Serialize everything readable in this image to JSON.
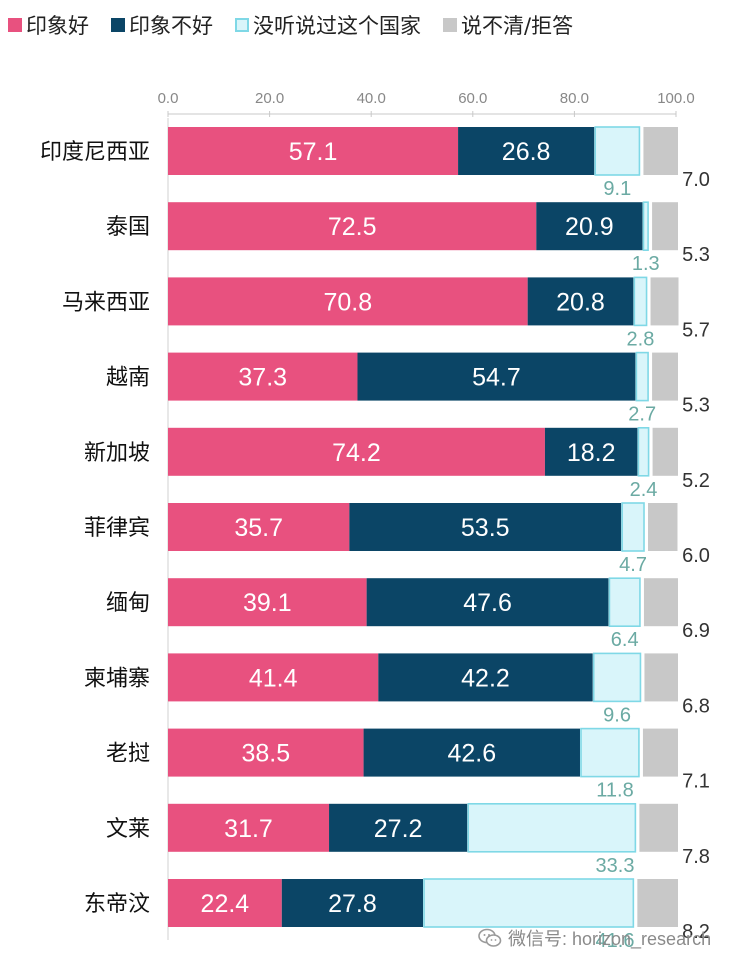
{
  "colors": {
    "good": "#E8517F",
    "bad": "#0B4566",
    "never": "#D9F5FA",
    "never_border": "#7FD8E6",
    "unclear": "#C8C8C8",
    "never_label": "#6BAAA3"
  },
  "legend": [
    {
      "label": "印象好",
      "color": "#E8517F"
    },
    {
      "label": "印象不好",
      "color": "#0B4566"
    },
    {
      "label": "没听说过这个国家",
      "color": "#D9F5FA"
    },
    {
      "label": "说不清/拒答",
      "color": "#C8C8C8"
    }
  ],
  "chart_data": {
    "type": "bar",
    "stacked": true,
    "orientation": "horizontal",
    "xlim": [
      0,
      100
    ],
    "xticks": [
      "0.0",
      "20.0",
      "40.0",
      "60.0",
      "80.0",
      "100.0"
    ],
    "categories": [
      "印度尼西亚",
      "泰国",
      "马来西亚",
      "越南",
      "新加坡",
      "菲律宾",
      "缅甸",
      "柬埔寨",
      "老挝",
      "文莱",
      "东帝汶"
    ],
    "series": [
      {
        "name": "印象好",
        "values": [
          57.1,
          72.5,
          70.8,
          37.3,
          74.2,
          35.7,
          39.1,
          41.4,
          38.5,
          31.7,
          22.4
        ]
      },
      {
        "name": "印象不好",
        "values": [
          26.8,
          20.9,
          20.8,
          54.7,
          18.2,
          53.5,
          47.6,
          42.2,
          42.6,
          27.2,
          27.8
        ]
      },
      {
        "name": "没听说过这个国家",
        "values": [
          9.1,
          1.3,
          2.8,
          2.7,
          2.4,
          4.7,
          6.4,
          9.6,
          11.8,
          33.3,
          41.6
        ]
      },
      {
        "name": "说不清/拒答",
        "values": [
          7.0,
          5.3,
          5.7,
          5.3,
          5.2,
          6.0,
          6.9,
          6.8,
          7.1,
          7.8,
          8.2
        ]
      }
    ]
  },
  "watermark": {
    "text": "微信号: horizon_research"
  }
}
